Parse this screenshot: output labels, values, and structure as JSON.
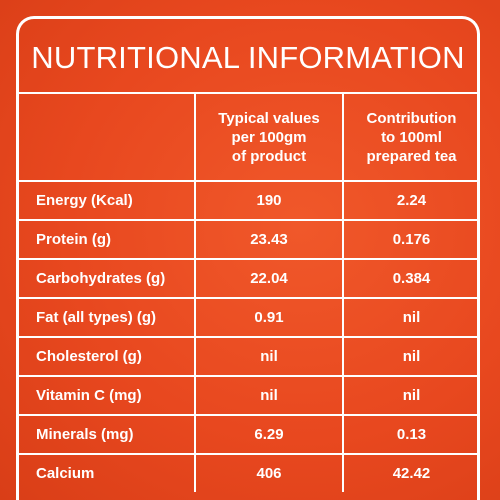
{
  "title": "NUTRITIONAL INFORMATION",
  "columns": {
    "per_100gm": [
      "Typical values",
      "per 100gm",
      "of product"
    ],
    "per_100ml": [
      "Contribution",
      "to 100ml",
      "prepared tea"
    ]
  },
  "rows": [
    {
      "nutrient": "Energy (Kcal)",
      "per_100gm": "190",
      "per_100ml": "2.24"
    },
    {
      "nutrient": "Protein (g)",
      "per_100gm": "23.43",
      "per_100ml": "0.176"
    },
    {
      "nutrient": "Carbohydrates (g)",
      "per_100gm": "22.04",
      "per_100ml": "0.384"
    },
    {
      "nutrient": "Fat (all types) (g)",
      "per_100gm": "0.91",
      "per_100ml": "nil"
    },
    {
      "nutrient": "Cholesterol (g)",
      "per_100gm": "nil",
      "per_100ml": "nil"
    },
    {
      "nutrient": "Vitamin C (mg)",
      "per_100gm": "nil",
      "per_100ml": "nil"
    },
    {
      "nutrient": "Minerals (mg)",
      "per_100gm": "6.29",
      "per_100ml": "0.13"
    },
    {
      "nutrient": "Calcium",
      "per_100gm": "406",
      "per_100ml": "42.42"
    }
  ],
  "colors": {
    "background": "#e8481f",
    "text": "#ffffff",
    "lines": "#ffffff"
  }
}
